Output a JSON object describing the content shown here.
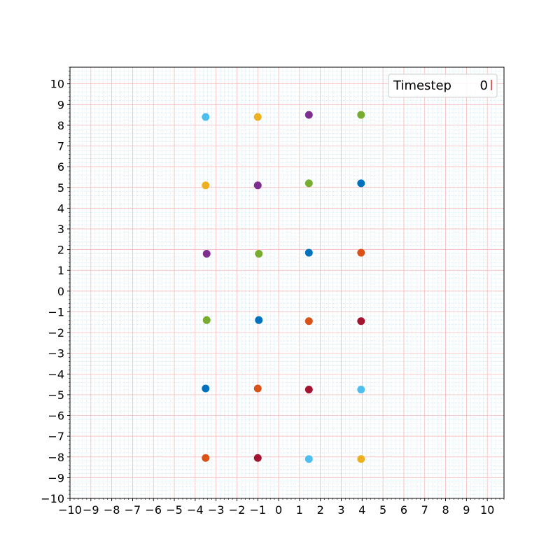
{
  "chart_data": {
    "type": "scatter",
    "xlim": [
      -10,
      10.8
    ],
    "ylim": [
      -10,
      10.8
    ],
    "xticks": [
      -10,
      -9,
      -8,
      -7,
      -6,
      -5,
      -4,
      -3,
      -2,
      -1,
      0,
      1,
      2,
      3,
      4,
      5,
      6,
      7,
      8,
      9,
      10
    ],
    "yticks": [
      -10,
      -9,
      -8,
      -7,
      -6,
      -5,
      -4,
      -3,
      -2,
      -1,
      0,
      1,
      2,
      3,
      4,
      5,
      6,
      7,
      8,
      9,
      10
    ],
    "minor_step": 0.2,
    "grid": true,
    "grid_major_color": "#f4b3b3",
    "grid_minor_color": "#c4dde6",
    "legend": {
      "label": "Timestep",
      "value": "0",
      "placement": "top-right",
      "marker_color": "#d62728"
    },
    "points": [
      {
        "x": -3.5,
        "y": 8.4,
        "color": "#4DBEEE"
      },
      {
        "x": -1.0,
        "y": 8.4,
        "color": "#EDB120"
      },
      {
        "x": 1.45,
        "y": 8.5,
        "color": "#7E2F8E"
      },
      {
        "x": 3.95,
        "y": 8.5,
        "color": "#77AC30"
      },
      {
        "x": -3.5,
        "y": 5.1,
        "color": "#EDB120"
      },
      {
        "x": -1.0,
        "y": 5.1,
        "color": "#7E2F8E"
      },
      {
        "x": 1.45,
        "y": 5.2,
        "color": "#77AC30"
      },
      {
        "x": 3.95,
        "y": 5.2,
        "color": "#0072BD"
      },
      {
        "x": -3.45,
        "y": 1.8,
        "color": "#7E2F8E"
      },
      {
        "x": -0.95,
        "y": 1.8,
        "color": "#77AC30"
      },
      {
        "x": 1.45,
        "y": 1.85,
        "color": "#0072BD"
      },
      {
        "x": 3.95,
        "y": 1.85,
        "color": "#D95319"
      },
      {
        "x": -3.45,
        "y": -1.4,
        "color": "#77AC30"
      },
      {
        "x": -0.95,
        "y": -1.4,
        "color": "#0072BD"
      },
      {
        "x": 1.45,
        "y": -1.45,
        "color": "#D95319"
      },
      {
        "x": 3.95,
        "y": -1.45,
        "color": "#A2142F"
      },
      {
        "x": -3.5,
        "y": -4.7,
        "color": "#0072BD"
      },
      {
        "x": -1.0,
        "y": -4.7,
        "color": "#D95319"
      },
      {
        "x": 1.45,
        "y": -4.75,
        "color": "#A2142F"
      },
      {
        "x": 3.95,
        "y": -4.75,
        "color": "#4DBEEE"
      },
      {
        "x": -3.5,
        "y": -8.05,
        "color": "#D95319"
      },
      {
        "x": -1.0,
        "y": -8.05,
        "color": "#A2142F"
      },
      {
        "x": 1.45,
        "y": -8.1,
        "color": "#4DBEEE"
      },
      {
        "x": 3.95,
        "y": -8.1,
        "color": "#EDB120"
      }
    ]
  }
}
